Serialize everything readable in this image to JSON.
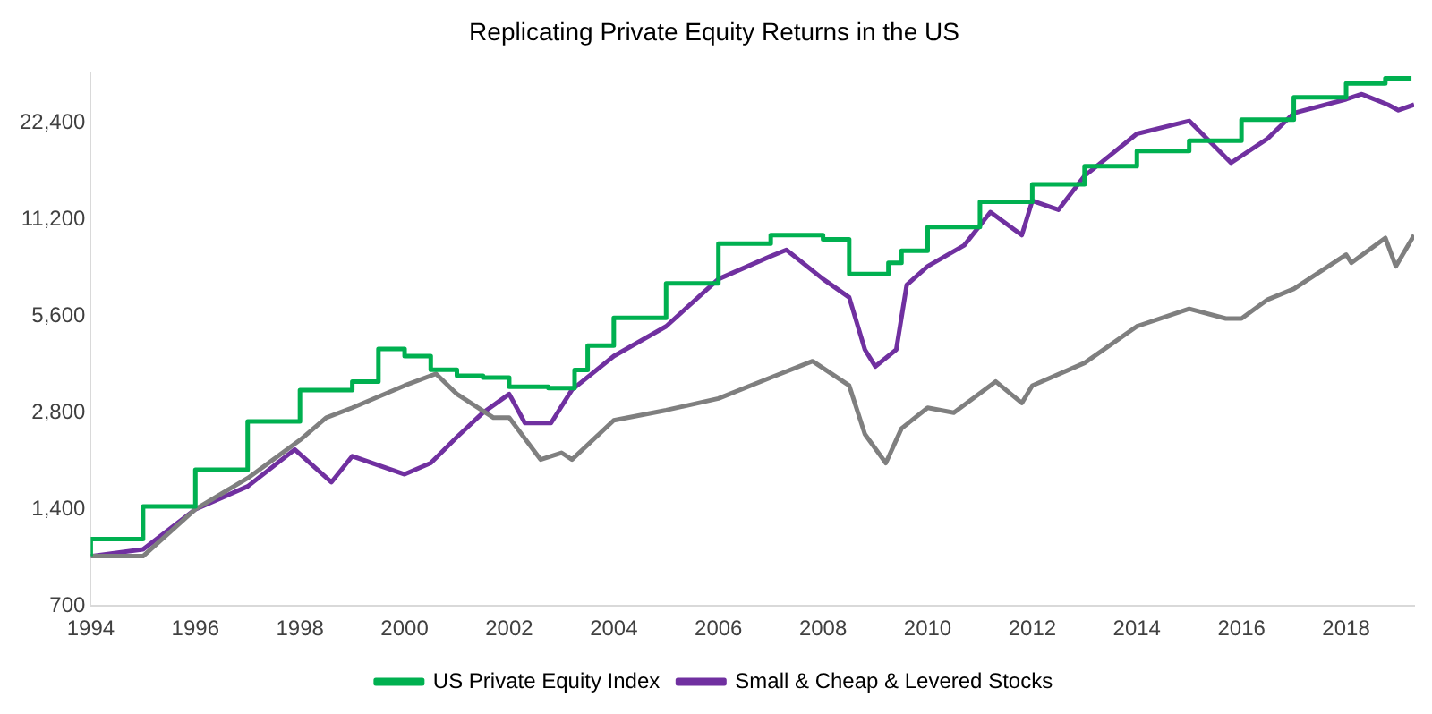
{
  "chart_data": {
    "type": "line",
    "title": "Replicating Private Equity Returns in the US",
    "xlim": [
      1994,
      2019.3
    ],
    "xticks": [
      1994,
      1996,
      1998,
      2000,
      2002,
      2004,
      2006,
      2008,
      2010,
      2012,
      2014,
      2016,
      2018
    ],
    "ylim": [
      700,
      32000
    ],
    "yticks": [
      {
        "value": 700,
        "label": "700"
      },
      {
        "value": 1400,
        "label": "1,400"
      },
      {
        "value": 2800,
        "label": "2,800"
      },
      {
        "value": 5600,
        "label": "5,600"
      },
      {
        "value": 11200,
        "label": "11,200"
      },
      {
        "value": 22400,
        "label": "22,400"
      }
    ],
    "log": "y",
    "grid": false,
    "legend": "bottom",
    "marker": "none",
    "series": [
      {
        "name": "US Private Equity Index",
        "type": "step",
        "color": "#00b050",
        "x": [
          1994,
          1995,
          1996,
          1997,
          1998,
          1999,
          1999.5,
          2000,
          2000.5,
          2001,
          2001.5,
          2002,
          2002.75,
          2003.25,
          2003.5,
          2004,
          2005,
          2006,
          2007,
          2007.5,
          2008,
          2008.5,
          2008.75,
          2009.25,
          2009.5,
          2010,
          2011,
          2012,
          2013,
          2014,
          2015,
          2016,
          2017,
          2018,
          2018.75,
          2019.25
        ],
        "values": [
          1000,
          1130,
          1430,
          1860,
          2630,
          3290,
          3500,
          4420,
          4200,
          3810,
          3650,
          3600,
          3370,
          3340,
          3800,
          4530,
          5530,
          7070,
          9420,
          10000,
          10000,
          9700,
          7570,
          7570,
          8200,
          8950,
          10600,
          12700,
          14400,
          16400,
          18300,
          19700,
          22900,
          26900,
          29700,
          30800
        ]
      },
      {
        "color": "#7f7f7f",
        "x": [
          1994,
          1995,
          1996,
          1997,
          1998,
          1998.5,
          1999,
          2000,
          2000.6,
          2001,
          2001.7,
          2002,
          2002.6,
          2003,
          2003.2,
          2004,
          2005,
          2006,
          2007,
          2007.8,
          2008.5,
          2008.8,
          2009.2,
          2009.5,
          2010,
          2010.5,
          2011.3,
          2011.8,
          2012,
          2013,
          2014,
          2015,
          2015.7,
          2016,
          2016.5,
          2017,
          2018,
          2018.1,
          2018.75,
          2018.95,
          2019.3
        ],
        "values": [
          1000,
          1000,
          1400,
          1750,
          2300,
          2700,
          2900,
          3400,
          3700,
          3200,
          2700,
          2700,
          2000,
          2100,
          2000,
          2650,
          2850,
          3100,
          3600,
          4050,
          3400,
          2400,
          1950,
          2500,
          2900,
          2800,
          3500,
          3000,
          3400,
          4000,
          5200,
          5900,
          5500,
          5500,
          6300,
          6800,
          8700,
          8200,
          9800,
          8000,
          10000
        ]
      },
      {
        "name": "Small & Cheap & Levered Stocks",
        "color": "#7030a0",
        "x": [
          1994,
          1995,
          1996,
          1997,
          1997.9,
          1998.6,
          1999,
          2000,
          2000.5,
          2001,
          2001.5,
          2002,
          2002.3,
          2002.8,
          2003.2,
          2004,
          2005,
          2006,
          2007,
          2007.3,
          2008,
          2008.5,
          2008.8,
          2009,
          2009.4,
          2009.6,
          2010,
          2010.7,
          2011.2,
          2011.8,
          2012,
          2012.5,
          2013,
          2014,
          2015,
          2015.8,
          2016.5,
          2017,
          2018,
          2018.3,
          2018.8,
          2019,
          2019.3
        ],
        "values": [
          1000,
          1050,
          1400,
          1650,
          2150,
          1700,
          2050,
          1800,
          1950,
          2350,
          2800,
          3200,
          2600,
          2600,
          3300,
          4200,
          5200,
          7300,
          8600,
          9000,
          7300,
          6400,
          4400,
          3900,
          4400,
          7000,
          8000,
          9300,
          11800,
          10000,
          12800,
          12000,
          15300,
          20700,
          22700,
          16800,
          20000,
          24000,
          26500,
          27500,
          25500,
          24500,
          25500
        ]
      }
    ]
  }
}
